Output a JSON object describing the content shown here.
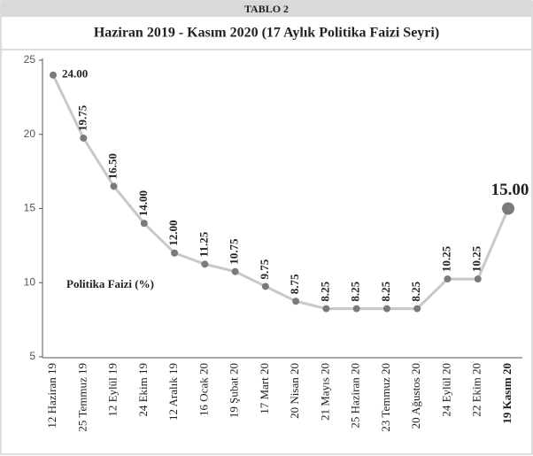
{
  "chart_data": {
    "type": "line",
    "header": "TABLO 2",
    "title": "Haziran 2019 - Kasım 2020 (17 Aylık Politika Faizi Seyri)",
    "categories": [
      "12 Haziran 19",
      "25 Temmuz 19",
      "12 Eylül 19",
      "24 Ekim 19",
      "12 Aralık 19",
      "16 Ocak 20",
      "19 Şubat 20",
      "17 Mart 20",
      "20 Nisan 20",
      "21 Mayıs 20",
      "25 Haziran 20",
      "23 Temmuz 20",
      "20 Ağustos 20",
      "24 Eylül 20",
      "22 Ekim 20",
      "19 Kasım 20"
    ],
    "series": [
      {
        "name": "Politika Faizi (%)",
        "color": "#c8c8c8",
        "marker_color": "#7a7a7a",
        "values": [
          24,
          19.75,
          16.5,
          14,
          12,
          11.25,
          10.75,
          9.75,
          8.75,
          8.25,
          8.25,
          8.25,
          8.25,
          10.25,
          10.25,
          15
        ],
        "value_labels": [
          "24.00",
          "19.75",
          "16.50",
          "14.00",
          "12.00",
          "11.25",
          "10.75",
          "9.75",
          "8.75",
          "8.25",
          "8.25",
          "8.25",
          "8.25",
          "10.25",
          "10.25",
          "15.00"
        ]
      }
    ],
    "ylim": [
      5,
      25
    ],
    "yticks": [
      5,
      10,
      15,
      20,
      25
    ]
  }
}
